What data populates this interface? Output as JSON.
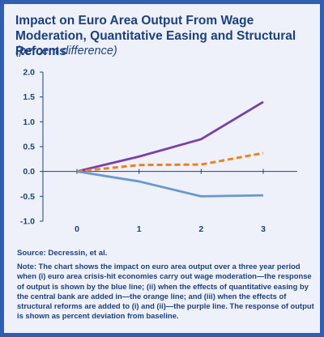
{
  "title": "Impact on Euro Area Output From Wage Moderation, Quantitative Easing and Structural Reforms",
  "subtitle": "(percent difference)",
  "source": "Source: Decressin, et al.",
  "note": "Note: The chart shows the impact on euro area output over a three year period when (i) euro area crisis-hit economies carry out wage moderation—the response of output is shown by the blue line; (ii) when the effects of quantitative easing by the central bank are added in—the orange line; and (iii) when the effects of structural reforms are added to (i) and (ii)—the purple line. The response of output is shown as percent deviation from baseline.",
  "colors": {
    "border": "#2e5fb3",
    "background": "#eef1f9",
    "text": "#1d3f80",
    "axis": "#1d3f80"
  },
  "chart_data": {
    "type": "line",
    "x": [
      0,
      1,
      2,
      3
    ],
    "xticks": [
      "0",
      "1",
      "2",
      "3"
    ],
    "ylim": [
      -1.0,
      2.0
    ],
    "yticks": [
      "2.0",
      "1.5",
      "1.0",
      "0.5",
      "0.0",
      "-0.5",
      "-1.0"
    ],
    "ytick_values": [
      2.0,
      1.5,
      1.0,
      0.5,
      0.0,
      -0.5,
      -1.0
    ],
    "grid": false,
    "legend": "none",
    "series": [
      {
        "color": "#7b3fa6",
        "style": "solid",
        "values": [
          0.0,
          0.3,
          0.65,
          1.4
        ]
      },
      {
        "color": "#f07f1f",
        "style": "dashed",
        "values": [
          0.0,
          0.13,
          0.14,
          0.37
        ]
      },
      {
        "color": "#6a97cf",
        "style": "solid",
        "values": [
          0.0,
          -0.2,
          -0.5,
          -0.48
        ]
      }
    ]
  }
}
